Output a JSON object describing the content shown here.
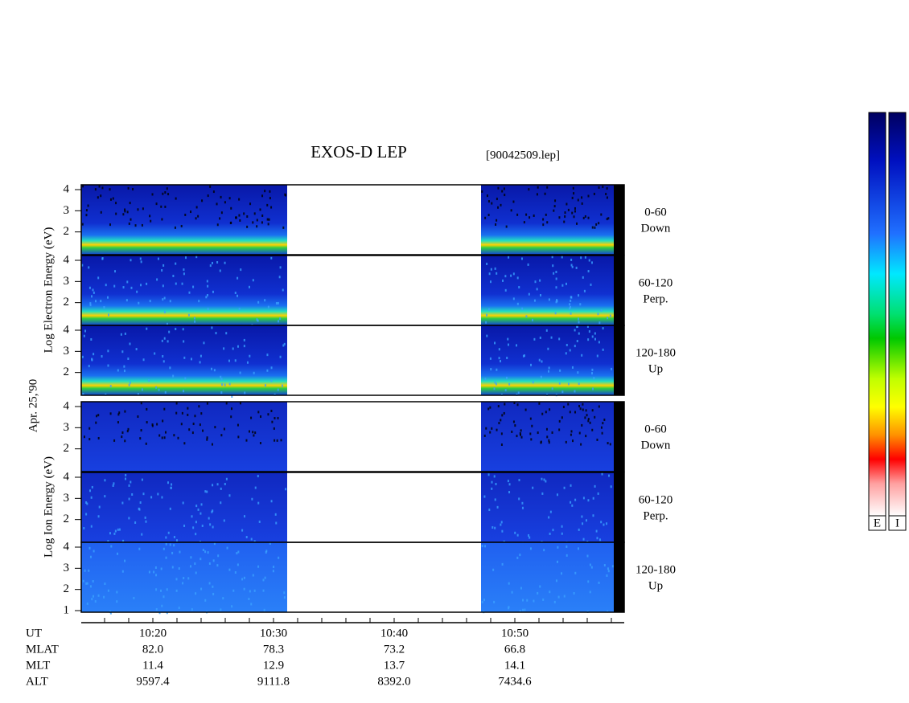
{
  "header": {
    "title": "EXOS-D LEP",
    "file": "[90042509.lep]"
  },
  "date": "Apr. 25,'90",
  "groups": [
    {
      "axis_label": "Log  Electron  Energy (eV)",
      "panels": [
        {
          "range": "0-60",
          "direction": "Down",
          "ticks": [
            2,
            3,
            4
          ]
        },
        {
          "range": "60-120",
          "direction": "Perp.",
          "ticks": [
            2,
            3,
            4
          ]
        },
        {
          "range": "120-180",
          "direction": "Up",
          "ticks": [
            2,
            3,
            4
          ]
        }
      ]
    },
    {
      "axis_label": "Log  Ion  Energy (eV)",
      "panels": [
        {
          "range": "0-60",
          "direction": "Down",
          "ticks": [
            2,
            3,
            4
          ]
        },
        {
          "range": "60-120",
          "direction": "Perp.",
          "ticks": [
            2,
            3,
            4
          ]
        },
        {
          "range": "120-180",
          "direction": "Up",
          "ticks": [
            1,
            2,
            3,
            4
          ]
        }
      ]
    }
  ],
  "orbit": {
    "labels": [
      "UT",
      "MLAT",
      "MLT",
      "ALT"
    ],
    "columns": [
      [
        "10:20",
        "82.0",
        "11.4",
        "9597.4"
      ],
      [
        "10:30",
        "78.3",
        "12.9",
        "9111.8"
      ],
      [
        "10:40",
        "73.2",
        "13.7",
        "8392.0"
      ],
      [
        "10:50",
        "66.8",
        "14.1",
        "7434.6"
      ]
    ]
  },
  "colorbars": [
    "E",
    "I"
  ]
}
